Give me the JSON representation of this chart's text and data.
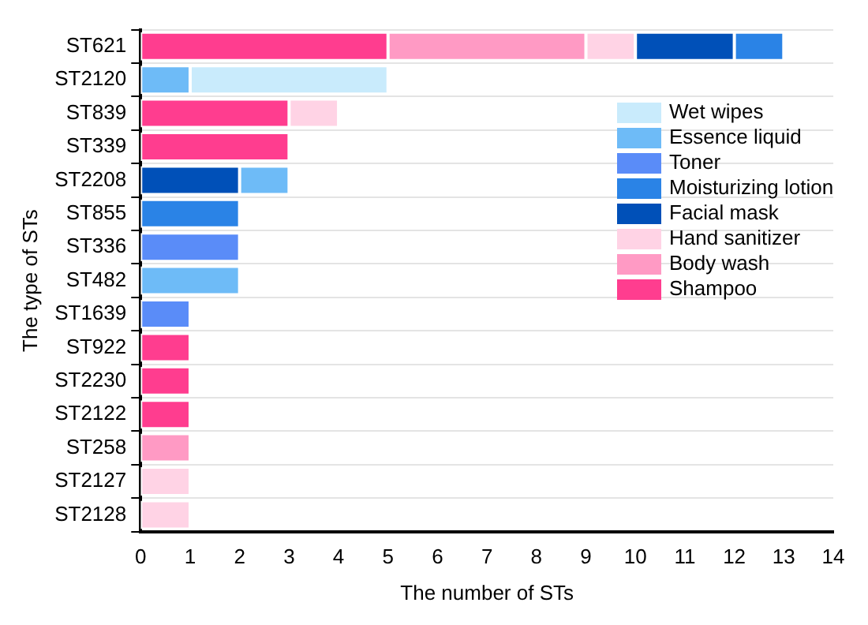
{
  "chart_data": {
    "type": "bar",
    "orientation": "horizontal",
    "stacked": true,
    "xlabel": "The number of STs",
    "ylabel": "The type of STs",
    "categories": [
      "ST621",
      "ST2120",
      "ST839",
      "ST339",
      "ST2208",
      "ST855",
      "ST336",
      "ST482",
      "ST1639",
      "ST922",
      "ST2230",
      "ST2122",
      "ST258",
      "ST2127",
      "ST2128"
    ],
    "series": [
      {
        "name": "Shampoo",
        "color": "#ff3d8f",
        "values": [
          5,
          null,
          3,
          3,
          null,
          null,
          null,
          null,
          null,
          1,
          1,
          1,
          null,
          null,
          null
        ]
      },
      {
        "name": "Body wash",
        "color": "#ff9ac4",
        "values": [
          4,
          null,
          null,
          null,
          null,
          null,
          null,
          null,
          null,
          null,
          null,
          null,
          1,
          null,
          null
        ]
      },
      {
        "name": "Hand sanitizer",
        "color": "#ffd3e5",
        "values": [
          1,
          null,
          1,
          null,
          null,
          null,
          null,
          null,
          null,
          null,
          null,
          null,
          null,
          1,
          1
        ]
      },
      {
        "name": "Facial mask",
        "color": "#0050b8",
        "values": [
          2,
          null,
          null,
          null,
          2,
          null,
          null,
          null,
          null,
          null,
          null,
          null,
          null,
          null,
          null
        ]
      },
      {
        "name": "Moisturizing lotion",
        "color": "#2a83e6",
        "values": [
          1,
          null,
          null,
          null,
          null,
          2,
          null,
          null,
          null,
          null,
          null,
          null,
          null,
          null,
          null
        ]
      },
      {
        "name": "Toner",
        "color": "#5a8cf8",
        "values": [
          null,
          null,
          null,
          null,
          null,
          null,
          2,
          null,
          1,
          null,
          null,
          null,
          null,
          null,
          null
        ]
      },
      {
        "name": "Essence liquid",
        "color": "#6ebbf7",
        "values": [
          null,
          1,
          null,
          null,
          1,
          null,
          null,
          2,
          null,
          null,
          null,
          null,
          null,
          null,
          null
        ]
      },
      {
        "name": "Wet wipes",
        "color": "#c9ebfc",
        "values": [
          null,
          4,
          null,
          null,
          null,
          null,
          null,
          null,
          null,
          null,
          null,
          null,
          null,
          null,
          null
        ]
      }
    ],
    "xlim": [
      0,
      14
    ],
    "xticks": [
      0,
      1,
      2,
      3,
      4,
      5,
      6,
      7,
      8,
      9,
      10,
      11,
      12,
      13,
      14
    ],
    "grid": "y",
    "legend": "top right"
  }
}
